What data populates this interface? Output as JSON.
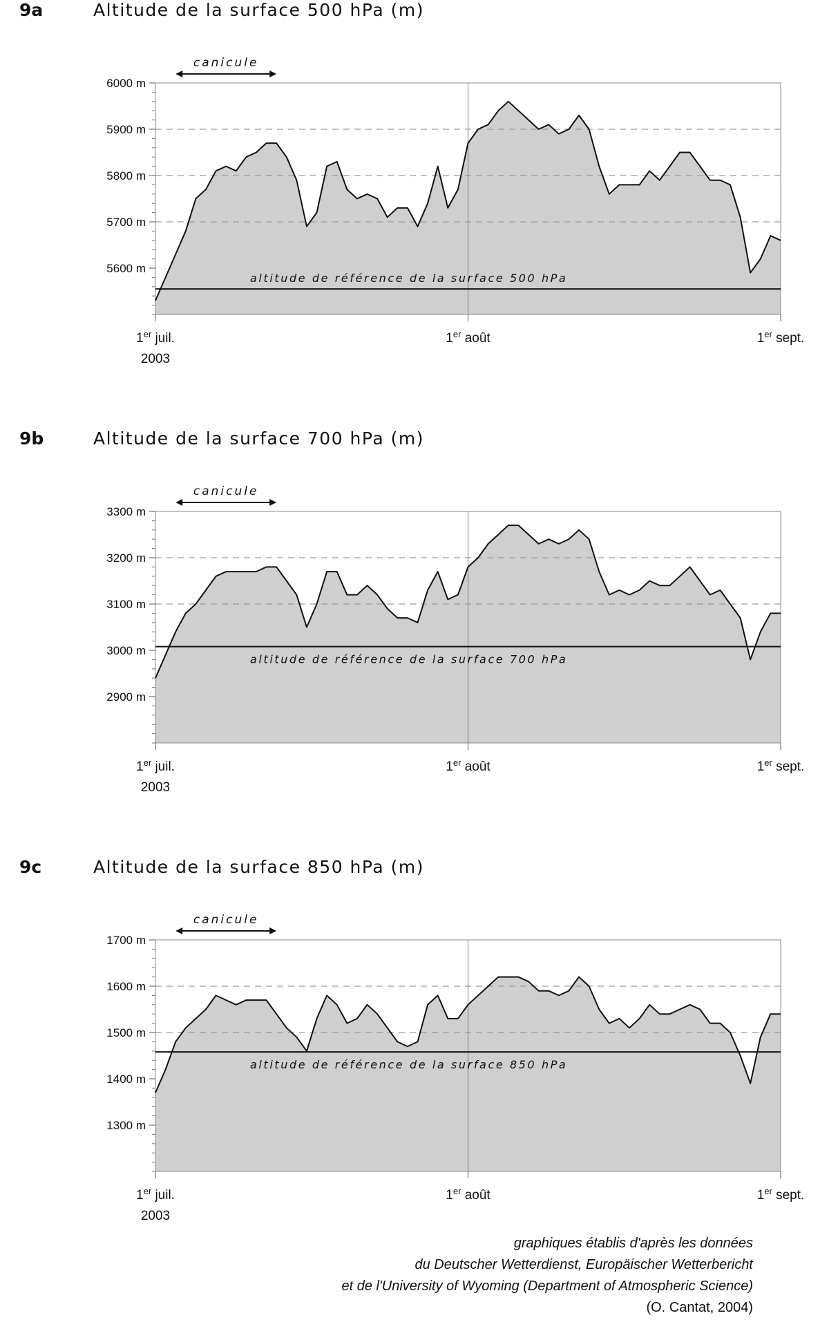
{
  "credits": {
    "lines": [
      "graphiques établis d'après les données",
      "du Deutscher Wetterdienst, Europäischer Wetterbericht",
      "et de l'University of Wyoming (Department of Atmospheric Science)"
    ],
    "author": "(O. Cantat, 2004)"
  },
  "style": {
    "fill": "#cfcfcf",
    "line": "#111111",
    "grid": "#9a9a9a"
  },
  "chart_data": [
    {
      "id": "9a",
      "type": "area",
      "title": "Altitude de la surface 500 hPa (m)",
      "x_ticks": [
        {
          "day": 0,
          "label": "1",
          "sup": "er",
          "rest": " juil.",
          "line2": "2003"
        },
        {
          "day": 31,
          "label": "1",
          "sup": "er",
          "rest": " août",
          "line2": ""
        },
        {
          "day": 62,
          "label": "1",
          "sup": "er",
          "rest": " sept.",
          "line2": ""
        }
      ],
      "xlim": [
        0,
        62
      ],
      "ylim": [
        5500,
        6000
      ],
      "y_ticks": [
        5600,
        5700,
        5800,
        5900,
        6000
      ],
      "y_tick_labels": [
        "5600 m",
        "5700 m",
        "5800 m",
        "5900 m",
        "6000 m"
      ],
      "dashed_grid": [
        5700,
        5800,
        5900
      ],
      "reference": {
        "value": 5555,
        "label": "altitude de référence de la surface 500 hPa"
      },
      "canicule": {
        "start": 2,
        "end": 12,
        "label": "canicule"
      },
      "values": [
        5530,
        5580,
        5630,
        5680,
        5750,
        5770,
        5810,
        5820,
        5810,
        5840,
        5850,
        5870,
        5870,
        5840,
        5790,
        5690,
        5720,
        5820,
        5830,
        5770,
        5750,
        5760,
        5750,
        5710,
        5730,
        5730,
        5690,
        5740,
        5820,
        5730,
        5770,
        5870,
        5900,
        5910,
        5940,
        5960,
        5940,
        5920,
        5900,
        5910,
        5890,
        5900,
        5930,
        5900,
        5820,
        5760,
        5780,
        5780,
        5780,
        5810,
        5790,
        5820,
        5850,
        5850,
        5820,
        5790,
        5790,
        5780,
        5710,
        5590,
        5620,
        5670,
        5660
      ]
    },
    {
      "id": "9b",
      "type": "area",
      "title": "Altitude de la surface 700 hPa (m)",
      "x_ticks": [
        {
          "day": 0,
          "label": "1",
          "sup": "er",
          "rest": " juil.",
          "line2": "2003"
        },
        {
          "day": 31,
          "label": "1",
          "sup": "er",
          "rest": " août",
          "line2": ""
        },
        {
          "day": 62,
          "label": "1",
          "sup": "er",
          "rest": " sept.",
          "line2": ""
        }
      ],
      "xlim": [
        0,
        62
      ],
      "ylim": [
        2800,
        3300
      ],
      "y_ticks": [
        2900,
        3000,
        3100,
        3200,
        3300
      ],
      "y_tick_labels": [
        "2900 m",
        "3000 m",
        "3100 m",
        "3200 m",
        "3300 m"
      ],
      "dashed_grid": [
        3100,
        3200
      ],
      "reference": {
        "value": 3008,
        "label": "altitude de référence de la surface 700 hPa"
      },
      "canicule": {
        "start": 2,
        "end": 12,
        "label": "canicule"
      },
      "values": [
        2940,
        2990,
        3040,
        3080,
        3100,
        3130,
        3160,
        3170,
        3170,
        3170,
        3170,
        3180,
        3180,
        3150,
        3120,
        3050,
        3100,
        3170,
        3170,
        3120,
        3120,
        3140,
        3120,
        3090,
        3070,
        3070,
        3060,
        3130,
        3170,
        3110,
        3120,
        3180,
        3200,
        3230,
        3250,
        3270,
        3270,
        3250,
        3230,
        3240,
        3230,
        3240,
        3260,
        3240,
        3170,
        3120,
        3130,
        3120,
        3130,
        3150,
        3140,
        3140,
        3160,
        3180,
        3150,
        3120,
        3130,
        3100,
        3070,
        2980,
        3040,
        3080,
        3080
      ]
    },
    {
      "id": "9c",
      "type": "area",
      "title": "Altitude de la surface 850 hPa (m)",
      "x_ticks": [
        {
          "day": 0,
          "label": "1",
          "sup": "er",
          "rest": " juil.",
          "line2": "2003"
        },
        {
          "day": 31,
          "label": "1",
          "sup": "er",
          "rest": " août",
          "line2": ""
        },
        {
          "day": 62,
          "label": "1",
          "sup": "er",
          "rest": " sept.",
          "line2": ""
        }
      ],
      "xlim": [
        0,
        62
      ],
      "ylim": [
        1200,
        1700
      ],
      "y_ticks": [
        1300,
        1400,
        1500,
        1600,
        1700
      ],
      "y_tick_labels": [
        "1300 m",
        "1400 m",
        "1500 m",
        "1600 m",
        "1700 m"
      ],
      "dashed_grid": [
        1500,
        1600
      ],
      "reference": {
        "value": 1458,
        "label": "altitude de référence de la surface 850 hPa"
      },
      "canicule": {
        "start": 2,
        "end": 12,
        "label": "canicule"
      },
      "values": [
        1370,
        1420,
        1480,
        1510,
        1530,
        1550,
        1580,
        1570,
        1560,
        1570,
        1570,
        1570,
        1540,
        1510,
        1490,
        1460,
        1530,
        1580,
        1560,
        1520,
        1530,
        1560,
        1540,
        1510,
        1480,
        1470,
        1480,
        1560,
        1580,
        1530,
        1530,
        1560,
        1580,
        1600,
        1620,
        1620,
        1620,
        1610,
        1590,
        1590,
        1580,
        1590,
        1620,
        1600,
        1550,
        1520,
        1530,
        1510,
        1530,
        1560,
        1540,
        1540,
        1550,
        1560,
        1550,
        1520,
        1520,
        1500,
        1450,
        1390,
        1490,
        1540,
        1540
      ]
    }
  ]
}
